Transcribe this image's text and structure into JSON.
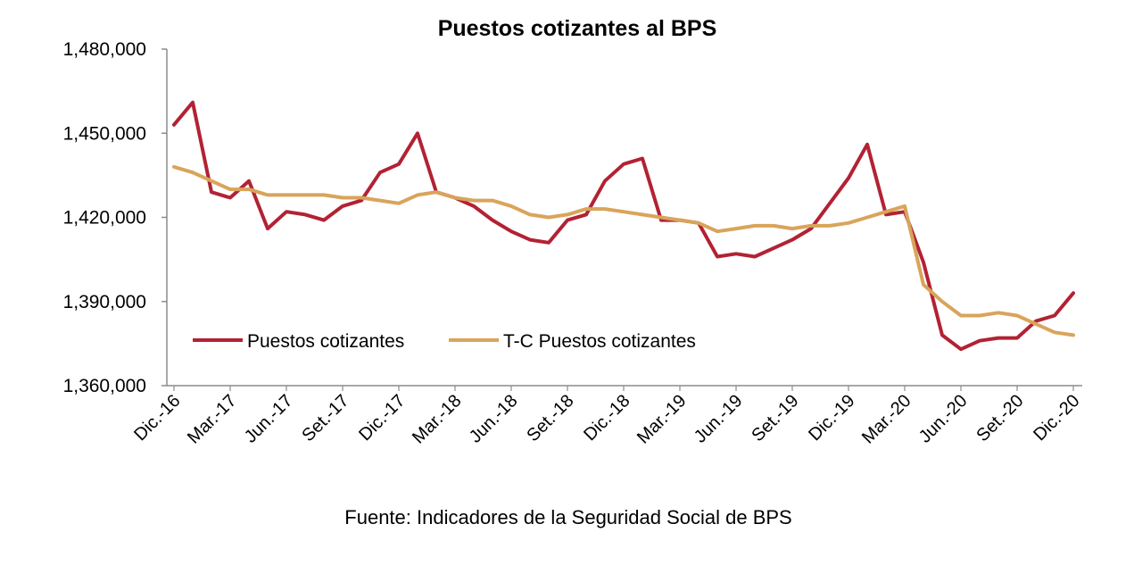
{
  "source": "Fuente: Indicadores de la Seguridad Social de BPS",
  "colors": {
    "series1": "#B22234",
    "series2": "#D9A45A",
    "axis": "#8c8c8c"
  },
  "chart_data": {
    "type": "line",
    "title": "Puestos cotizantes al BPS",
    "xlabel": "",
    "ylabel": "",
    "ylim": [
      1360000,
      1480000
    ],
    "yticks": [
      1360000,
      1390000,
      1420000,
      1450000,
      1480000
    ],
    "ytick_labels": [
      "1,360,000",
      "1,390,000",
      "1,420,000",
      "1,450,000",
      "1,480,000"
    ],
    "grid": false,
    "legend_position": "inside-bottom-left",
    "x": [
      "2016-12",
      "2017-01",
      "2017-02",
      "2017-03",
      "2017-04",
      "2017-05",
      "2017-06",
      "2017-07",
      "2017-08",
      "2017-09",
      "2017-10",
      "2017-11",
      "2017-12",
      "2018-01",
      "2018-02",
      "2018-03",
      "2018-04",
      "2018-05",
      "2018-06",
      "2018-07",
      "2018-08",
      "2018-09",
      "2018-10",
      "2018-11",
      "2018-12",
      "2019-01",
      "2019-02",
      "2019-03",
      "2019-04",
      "2019-05",
      "2019-06",
      "2019-07",
      "2019-08",
      "2019-09",
      "2019-10",
      "2019-11",
      "2019-12",
      "2020-01",
      "2020-02",
      "2020-03",
      "2020-04",
      "2020-05",
      "2020-06",
      "2020-07",
      "2020-08",
      "2020-09",
      "2020-10",
      "2020-11",
      "2020-12"
    ],
    "x_tick_labels": [
      "Dic.-16",
      "Mar.-17",
      "Jun.-17",
      "Set.-17",
      "Dic.-17",
      "Mar.-18",
      "Jun.-18",
      "Set.-18",
      "Dic.-18",
      "Mar.-19",
      "Jun.-19",
      "Set.-19",
      "Dic.-19",
      "Mar.-20",
      "Jun.-20",
      "Set.-20",
      "Dic.-20"
    ],
    "series": [
      {
        "name": "Puestos cotizantes",
        "values": [
          1453000,
          1461000,
          1429000,
          1427000,
          1433000,
          1416000,
          1422000,
          1421000,
          1419000,
          1424000,
          1426000,
          1436000,
          1439000,
          1450000,
          1429000,
          1427000,
          1424000,
          1419000,
          1415000,
          1412000,
          1411000,
          1419000,
          1421000,
          1433000,
          1439000,
          1441000,
          1419000,
          1419000,
          1418000,
          1406000,
          1407000,
          1406000,
          1409000,
          1412000,
          1416000,
          1425000,
          1434000,
          1446000,
          1421000,
          1422000,
          1404000,
          1378000,
          1373000,
          1376000,
          1377000,
          1377000,
          1383000,
          1385000,
          1393000
        ]
      },
      {
        "name": "T-C Puestos cotizantes",
        "values": [
          1438000,
          1436000,
          1433000,
          1430000,
          1430000,
          1428000,
          1428000,
          1428000,
          1428000,
          1427000,
          1427000,
          1426000,
          1425000,
          1428000,
          1429000,
          1427000,
          1426000,
          1426000,
          1424000,
          1421000,
          1420000,
          1421000,
          1423000,
          1423000,
          1422000,
          1421000,
          1420000,
          1419000,
          1418000,
          1415000,
          1416000,
          1417000,
          1417000,
          1416000,
          1417000,
          1417000,
          1418000,
          1420000,
          1422000,
          1424000,
          1396000,
          1390000,
          1385000,
          1385000,
          1386000,
          1385000,
          1382000,
          1379000,
          1378000
        ]
      }
    ]
  }
}
